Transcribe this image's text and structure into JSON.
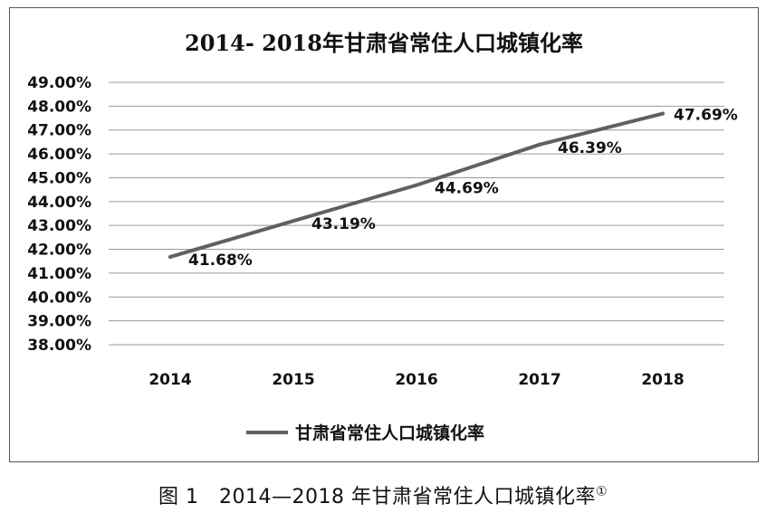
{
  "chart_data": {
    "type": "line",
    "title": "2014- 2018年甘肃省常住人口城镇化率",
    "categories": [
      "2014",
      "2015",
      "2016",
      "2017",
      "2018"
    ],
    "series": [
      {
        "name": "甘肃省常住人口城镇化率",
        "values": [
          41.68,
          43.19,
          44.69,
          46.39,
          47.69
        ],
        "color": "#606060"
      }
    ],
    "data_labels": [
      "41.68%",
      "43.19%",
      "44.69%",
      "46.39%",
      "47.69%"
    ],
    "ylim": [
      38,
      49
    ],
    "ytick_labels": [
      "38.00%",
      "39.00%",
      "40.00%",
      "41.00%",
      "42.00%",
      "43.00%",
      "44.00%",
      "45.00%",
      "46.00%",
      "47.00%",
      "48.00%",
      "49.00%"
    ],
    "xlabel": "",
    "ylabel": "",
    "grid": true,
    "legend_position": "bottom"
  },
  "caption": {
    "text": "图 1　2014—2018 年甘肃省常住人口城镇化率",
    "note_mark": "①"
  }
}
